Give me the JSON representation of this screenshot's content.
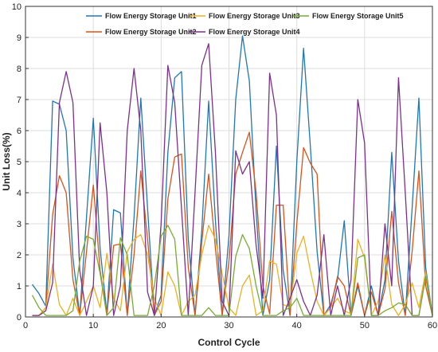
{
  "chart_data": {
    "type": "line",
    "title": "",
    "xlabel": "Control Cycle",
    "ylabel": "Unit Loss(%)",
    "xlim": [
      0,
      60
    ],
    "ylim": [
      0,
      10
    ],
    "xticks": [
      0,
      10,
      20,
      30,
      40,
      50,
      60
    ],
    "yticks": [
      0,
      1,
      2,
      3,
      4,
      5,
      6,
      7,
      8,
      9,
      10
    ],
    "grid": true,
    "legend_position": "top",
    "x": [
      1,
      2,
      3,
      4,
      5,
      6,
      7,
      8,
      9,
      10,
      11,
      12,
      13,
      14,
      15,
      16,
      17,
      18,
      19,
      20,
      21,
      22,
      23,
      24,
      25,
      26,
      27,
      28,
      29,
      30,
      31,
      32,
      33,
      34,
      35,
      36,
      37,
      38,
      39,
      40,
      41,
      42,
      43,
      44,
      45,
      46,
      47,
      48,
      49,
      50,
      51,
      52,
      53,
      54,
      55,
      56,
      57,
      58,
      59,
      60
    ],
    "series": [
      {
        "name": "Flow Energy Storage Unit1",
        "color": "#1f77b4",
        "values": [
          1.05,
          0.75,
          0.35,
          6.95,
          6.85,
          6.0,
          1.9,
          0.05,
          3.2,
          6.4,
          2.2,
          0.1,
          3.45,
          3.35,
          0.05,
          3.2,
          7.05,
          3.5,
          0.05,
          0.7,
          5.3,
          7.7,
          7.9,
          2.5,
          0.05,
          2.8,
          6.95,
          3.1,
          0.05,
          2.6,
          7.0,
          9.05,
          7.6,
          3.4,
          0.05,
          1.2,
          5.5,
          1.5,
          0.05,
          5.0,
          8.65,
          5.5,
          2.1,
          0.05,
          0.4,
          1.2,
          3.1,
          0.05,
          1.0,
          0.05,
          1.0,
          0.05,
          1.2,
          5.3,
          1.8,
          0.05,
          3.5,
          7.05,
          1.6,
          0.05
        ]
      },
      {
        "name": "Flow Energy Storage Unit2",
        "color": "#d95319",
        "values": [
          0.05,
          0.05,
          0.3,
          3.3,
          4.55,
          4.0,
          1.2,
          0.05,
          2.1,
          4.25,
          1.5,
          0.05,
          2.3,
          2.35,
          0.05,
          2.0,
          4.7,
          2.5,
          0.05,
          0.5,
          3.8,
          5.15,
          5.25,
          1.6,
          0.05,
          2.4,
          4.6,
          2.2,
          0.05,
          1.8,
          4.6,
          5.3,
          5.95,
          4.0,
          1.0,
          0.1,
          3.6,
          3.6,
          0.05,
          3.0,
          5.45,
          4.95,
          4.6,
          0.05,
          0.3,
          1.3,
          1.0,
          0.05,
          1.1,
          0.05,
          0.8,
          0.05,
          0.9,
          3.4,
          1.1,
          0.05,
          2.1,
          4.7,
          1.0,
          0.05
        ]
      },
      {
        "name": "Flow Energy Storage Unit3",
        "color": "#edb120",
        "values": [
          0.05,
          0.05,
          0.3,
          1.7,
          0.4,
          0.05,
          0.6,
          0.05,
          0.5,
          1.0,
          0.3,
          2.05,
          0.6,
          0.2,
          2.1,
          2.5,
          2.65,
          2.0,
          0.6,
          0.05,
          1.45,
          1.0,
          0.05,
          0.5,
          0.7,
          2.0,
          2.95,
          2.5,
          1.4,
          0.3,
          0.05,
          1.0,
          1.35,
          0.05,
          0.2,
          1.8,
          1.7,
          0.4,
          0.3,
          2.05,
          2.6,
          1.5,
          0.5,
          0.05,
          0.3,
          0.6,
          0.2,
          0.1,
          2.5,
          1.9,
          0.05,
          0.5,
          2.0,
          0.4,
          0.05,
          0.4,
          1.1,
          0.3,
          1.45,
          0.05
        ]
      },
      {
        "name": "Flow Energy Storage Unit4",
        "color": "#7e2f8e",
        "values": [
          0.05,
          0.05,
          0.2,
          1.1,
          6.9,
          7.9,
          6.9,
          1.5,
          0.05,
          1.0,
          6.25,
          4.0,
          0.05,
          1.0,
          6.0,
          8.0,
          6.0,
          0.8,
          0.05,
          3.0,
          8.1,
          6.9,
          3.5,
          0.05,
          4.0,
          8.1,
          8.8,
          5.3,
          0.5,
          0.05,
          5.35,
          4.6,
          5.0,
          2.3,
          0.6,
          7.85,
          6.5,
          0.05,
          0.6,
          1.2,
          0.5,
          0.05,
          0.7,
          2.65,
          0.05,
          1.0,
          0.05,
          1.2,
          7.0,
          5.6,
          0.05,
          0.05,
          3.0,
          1.0,
          7.7,
          4.0,
          0.05,
          0.05,
          1.3,
          0.05
        ]
      },
      {
        "name": "Flow Energy Storage Unit5",
        "color": "#77ac30",
        "values": [
          0.7,
          0.3,
          0.05,
          0.05,
          0.05,
          0.05,
          0.2,
          1.8,
          2.6,
          2.5,
          1.4,
          0.05,
          0.3,
          2.55,
          2.0,
          0.05,
          0.05,
          0.05,
          1.0,
          2.6,
          2.95,
          2.5,
          0.05,
          0.05,
          0.05,
          0.05,
          0.3,
          0.05,
          0.05,
          0.05,
          1.95,
          2.65,
          2.2,
          1.0,
          0.05,
          0.05,
          0.05,
          0.2,
          0.3,
          0.6,
          0.05,
          0.05,
          0.05,
          0.05,
          0.05,
          0.05,
          0.05,
          0.05,
          1.9,
          2.0,
          0.05,
          0.05,
          0.2,
          0.3,
          0.45,
          0.4,
          0.05,
          0.05,
          1.3,
          0.05
        ]
      }
    ]
  }
}
